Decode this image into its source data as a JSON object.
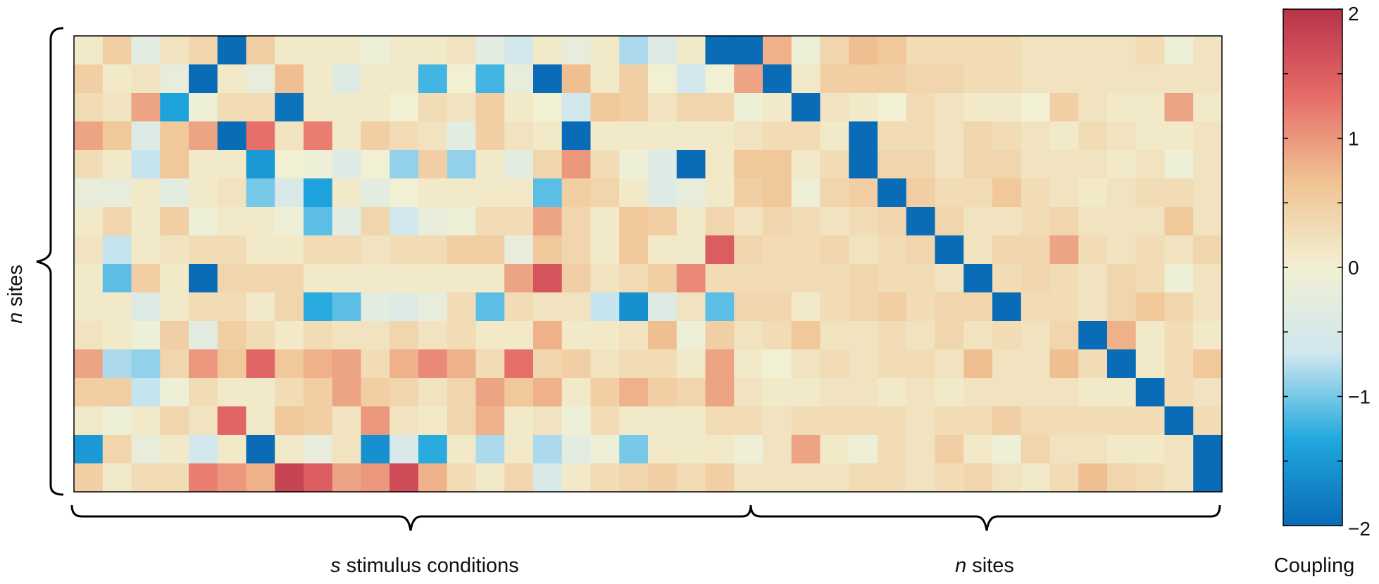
{
  "chart_data": {
    "type": "heatmap",
    "rows": 16,
    "cols": 40,
    "stimulus_cols": 24,
    "site_cols": 16,
    "vmin": -2,
    "vmax": 2,
    "colormap": [
      "#0a6bb6",
      "#20a8df",
      "#cfe7ef",
      "#f2f0d3",
      "#f0c393",
      "#e66b67",
      "#b8334a"
    ],
    "colorbar": {
      "label": "Coupling",
      "ticks": [
        2,
        1,
        0,
        -1,
        -2
      ],
      "tick_labels": [
        "2",
        "1",
        "0",
        "−1",
        "−2"
      ]
    },
    "labels": {
      "stimulus_prefix": "s",
      "stimulus_text": " stimulus conditions",
      "sites_prefix": "n",
      "sites_text": " sites",
      "left_prefix": "n",
      "left_text": " sites"
    },
    "values": [
      [
        0.1,
        0.5,
        -0.3,
        0.2,
        0.4,
        -2.0,
        0.5,
        0.1,
        0.1,
        0.1,
        -0.1,
        0.1,
        0.1,
        0.2,
        -0.3,
        -0.6,
        0.1,
        -0.2,
        0.1,
        -0.8,
        -0.4,
        0.1,
        -2.0,
        -2.0,
        0.8,
        -0.1,
        0.4,
        0.7,
        0.6,
        0.3,
        0.3,
        0.3,
        0.3,
        0.2,
        0.2,
        0.2,
        0.2,
        0.3,
        -0.1,
        0.2
      ],
      [
        0.5,
        0.1,
        0.2,
        -0.2,
        -2.0,
        0.1,
        -0.2,
        0.7,
        0.1,
        -0.4,
        0.1,
        0.1,
        -1.2,
        0.0,
        -1.2,
        -0.2,
        -2.0,
        0.7,
        0.1,
        0.5,
        0.0,
        -0.6,
        0.0,
        0.9,
        -2.0,
        0.1,
        0.5,
        0.5,
        0.5,
        0.4,
        0.4,
        0.3,
        0.3,
        0.2,
        0.2,
        0.2,
        0.2,
        0.2,
        0.2,
        0.2
      ],
      [
        0.3,
        0.2,
        0.9,
        -1.4,
        -0.1,
        0.3,
        0.3,
        -1.9,
        0.1,
        0.1,
        0.1,
        0.0,
        0.3,
        0.2,
        0.5,
        0.1,
        0.0,
        -0.6,
        0.6,
        0.5,
        0.2,
        0.4,
        0.4,
        -0.1,
        0.1,
        -2.0,
        0.2,
        0.1,
        0.0,
        0.3,
        0.2,
        0.1,
        0.1,
        0.0,
        0.5,
        0.2,
        0.1,
        0.1,
        0.9,
        0.1
      ],
      [
        0.9,
        0.6,
        -0.4,
        0.6,
        0.9,
        -2.0,
        1.3,
        0.2,
        1.2,
        0.1,
        0.5,
        0.3,
        0.2,
        -0.3,
        0.5,
        0.2,
        0.1,
        -2.0,
        0.1,
        0.1,
        0.1,
        0.1,
        0.1,
        0.2,
        0.3,
        0.3,
        0.1,
        -2.0,
        0.3,
        0.3,
        0.2,
        0.4,
        0.3,
        0.2,
        0.1,
        0.3,
        0.2,
        0.1,
        0.1,
        0.2
      ],
      [
        0.3,
        0.1,
        -0.7,
        0.6,
        0.1,
        0.1,
        -1.5,
        0.0,
        -0.1,
        -0.4,
        0.0,
        -0.9,
        0.5,
        -0.9,
        0.1,
        -0.3,
        0.4,
        1.0,
        0.3,
        -0.1,
        -0.4,
        -2.0,
        0.1,
        0.6,
        0.6,
        0.1,
        0.3,
        -2.0,
        0.4,
        0.4,
        0.2,
        0.4,
        0.4,
        0.2,
        0.2,
        0.2,
        0.1,
        0.2,
        -0.1,
        0.2
      ],
      [
        -0.2,
        -0.2,
        0.1,
        -0.3,
        0.1,
        0.2,
        -1.0,
        -0.5,
        -1.4,
        0.1,
        -0.3,
        0.0,
        0.1,
        0.1,
        0.1,
        0.1,
        -1.1,
        0.5,
        0.4,
        0.1,
        -0.4,
        -0.2,
        0.1,
        0.5,
        0.6,
        -0.1,
        0.4,
        0.5,
        -2.0,
        0.5,
        0.3,
        0.3,
        0.6,
        0.3,
        0.2,
        0.1,
        0.2,
        0.3,
        0.3,
        0.2
      ],
      [
        0.1,
        0.4,
        0.1,
        0.5,
        -0.1,
        0.1,
        0.1,
        -0.1,
        -1.1,
        -0.3,
        0.4,
        -0.6,
        -0.2,
        -0.1,
        0.3,
        0.3,
        0.9,
        0.4,
        0.1,
        0.6,
        0.5,
        0.1,
        0.4,
        0.2,
        0.4,
        0.3,
        0.2,
        0.3,
        0.4,
        -2.0,
        0.4,
        0.2,
        0.2,
        0.3,
        0.4,
        0.2,
        0.2,
        0.2,
        0.6,
        0.2
      ],
      [
        0.2,
        -0.7,
        0.1,
        0.2,
        0.3,
        0.3,
        0.1,
        0.1,
        0.3,
        0.3,
        0.2,
        0.3,
        0.3,
        0.5,
        0.5,
        -0.2,
        0.6,
        0.4,
        0.1,
        0.6,
        0.1,
        0.1,
        1.5,
        0.4,
        0.3,
        0.3,
        0.4,
        0.2,
        0.3,
        0.4,
        -2.0,
        0.2,
        0.4,
        0.4,
        0.9,
        0.3,
        0.2,
        0.3,
        0.2,
        0.4
      ],
      [
        0.1,
        -1.1,
        0.5,
        0.1,
        -2.0,
        0.4,
        0.4,
        0.4,
        0.1,
        0.1,
        0.1,
        0.1,
        0.1,
        0.1,
        0.1,
        0.9,
        1.6,
        0.5,
        0.2,
        0.3,
        0.5,
        1.1,
        0.3,
        0.3,
        0.3,
        0.3,
        0.3,
        0.4,
        0.3,
        0.3,
        0.2,
        -2.0,
        0.3,
        0.4,
        0.3,
        0.2,
        0.4,
        0.3,
        -0.1,
        0.2
      ],
      [
        0.1,
        0.1,
        -0.4,
        0.1,
        0.3,
        0.3,
        0.1,
        0.4,
        -1.3,
        -1.1,
        -0.3,
        -0.4,
        -0.2,
        0.3,
        -1.1,
        0.3,
        0.2,
        0.2,
        -0.7,
        -1.6,
        -0.4,
        0.2,
        -1.1,
        0.4,
        0.4,
        0.1,
        0.3,
        0.4,
        0.5,
        0.3,
        0.4,
        0.4,
        -2.0,
        0.3,
        0.3,
        0.2,
        0.4,
        0.6,
        0.4,
        0.2
      ],
      [
        0.2,
        0.1,
        -0.1,
        0.5,
        -0.3,
        0.5,
        0.3,
        0.1,
        0.3,
        0.2,
        0.2,
        0.4,
        0.2,
        0.3,
        0.1,
        0.1,
        0.8,
        0.1,
        0.1,
        0.2,
        0.7,
        -0.1,
        0.5,
        0.2,
        0.3,
        0.6,
        0.2,
        0.2,
        0.3,
        0.2,
        0.4,
        0.2,
        0.3,
        0.2,
        0.4,
        -2.0,
        0.8,
        0.1,
        0.3,
        0.1
      ],
      [
        0.9,
        -0.8,
        -0.9,
        0.4,
        1.0,
        0.6,
        1.4,
        0.6,
        0.8,
        0.9,
        0.3,
        0.8,
        1.1,
        0.8,
        0.3,
        1.3,
        0.4,
        0.5,
        0.2,
        0.3,
        0.3,
        0.1,
        0.9,
        0.1,
        0.0,
        0.2,
        0.3,
        0.2,
        0.3,
        0.3,
        0.2,
        0.7,
        0.2,
        0.2,
        0.7,
        0.3,
        -2.0,
        0.1,
        0.3,
        0.6
      ],
      [
        0.5,
        0.5,
        -0.7,
        -0.1,
        0.3,
        0.1,
        0.1,
        0.3,
        0.5,
        0.9,
        0.5,
        0.4,
        0.2,
        0.4,
        0.9,
        0.6,
        0.8,
        0.1,
        0.5,
        0.8,
        0.5,
        0.4,
        0.9,
        0.2,
        0.1,
        0.1,
        0.2,
        0.2,
        0.1,
        0.2,
        0.1,
        0.2,
        0.2,
        0.2,
        0.2,
        0.1,
        0.1,
        -2.0,
        0.3,
        0.2
      ],
      [
        0.1,
        -0.1,
        0.1,
        0.4,
        0.2,
        1.4,
        0.1,
        0.6,
        0.5,
        0.2,
        1.0,
        0.2,
        0.1,
        0.4,
        0.8,
        0.1,
        0.2,
        -0.1,
        0.3,
        0.1,
        0.1,
        0.1,
        0.3,
        0.3,
        0.2,
        0.3,
        0.3,
        0.3,
        0.3,
        0.2,
        0.3,
        0.3,
        0.5,
        0.3,
        0.3,
        0.3,
        0.3,
        0.3,
        -2.0,
        0.3
      ],
      [
        -1.5,
        0.4,
        -0.2,
        0.1,
        -0.6,
        0.1,
        -2.0,
        0.1,
        -0.2,
        0.2,
        -1.6,
        -0.5,
        -1.3,
        0.1,
        -0.8,
        0.1,
        -0.8,
        -0.3,
        -0.1,
        -1.0,
        0.1,
        0.1,
        0.1,
        -0.1,
        0.2,
        0.9,
        0.1,
        -0.1,
        0.3,
        0.2,
        0.5,
        0.1,
        -0.1,
        0.4,
        0.2,
        0.2,
        0.1,
        0.1,
        0.2,
        -2.0
      ],
      [
        0.5,
        0.1,
        0.3,
        0.3,
        1.2,
        1.0,
        0.8,
        1.8,
        1.5,
        0.9,
        1.0,
        1.7,
        0.8,
        0.3,
        0.1,
        0.4,
        -0.5,
        0.1,
        0.3,
        0.4,
        0.5,
        0.3,
        0.5,
        0.2,
        0.2,
        0.2,
        0.2,
        0.3,
        0.3,
        0.2,
        0.3,
        0.4,
        0.2,
        0.1,
        0.3,
        0.7,
        0.4,
        0.3,
        0.2,
        -2.0
      ]
    ]
  }
}
